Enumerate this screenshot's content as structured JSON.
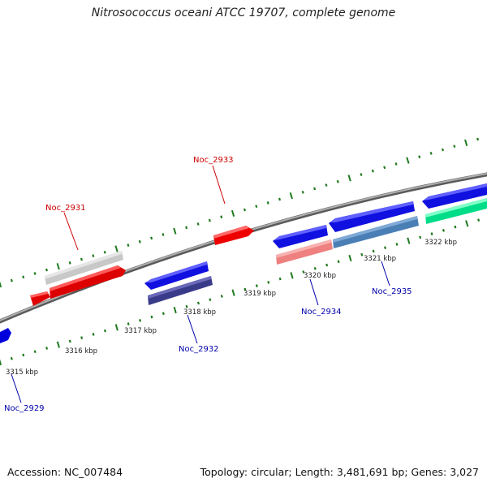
{
  "title": "Nitrosococcus oceani ATCC 19707, complete genome",
  "footer": {
    "accession": "Accession: NC_007484",
    "summary": "Topology: circular; Length: 3,481,691 bp; Genes: 3,027"
  },
  "colors": {
    "backbone": "#8a8a8a",
    "tick": "#1f7a1f",
    "forward_label": "#cc0000",
    "reverse_label": "#0000aa"
  },
  "kbp_labels": [
    "3315 kbp",
    "3316 kbp",
    "3317 kbp",
    "3318 kbp",
    "3319 kbp",
    "3320 kbp",
    "3321 kbp",
    "3322 kbp"
  ],
  "gene_labels": {
    "forward": [
      "Noc_2931",
      "Noc_2933"
    ],
    "reverse": [
      "Noc_2929",
      "Noc_2932",
      "Noc_2934",
      "Noc_2935"
    ]
  }
}
